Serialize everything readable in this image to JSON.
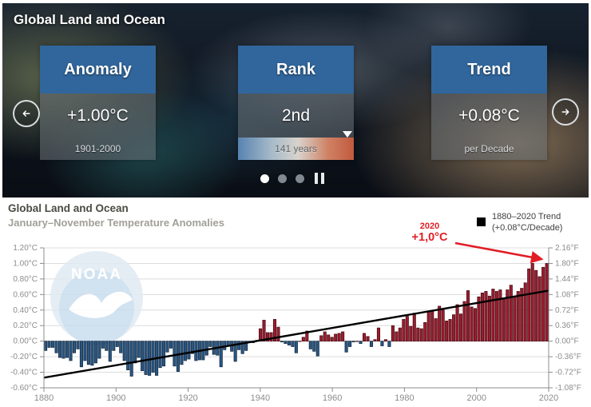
{
  "hero": {
    "title": "Global Land and Ocean",
    "cards": [
      {
        "title": "Anomaly",
        "value": "+1.00°C",
        "footer": "1901-2000"
      },
      {
        "title": "Rank",
        "value": "2nd",
        "footer": "141 years"
      },
      {
        "title": "Trend",
        "value": "+0.08°C",
        "footer": "per Decade"
      }
    ],
    "colors": {
      "card_header": "#30669c"
    }
  },
  "chart": {
    "title": "Global Land and Ocean",
    "subtitle": "January–November Temperature Anomalies",
    "legend_line1": "1880–2020 Trend",
    "legend_line2": "(+0.08°C/Decade)",
    "annotation_year": "2020",
    "annotation_value": "+1,0°C",
    "watermark": "NOAA"
  },
  "chart_data": {
    "type": "bar",
    "title": "Global Land and Ocean — January–November Temperature Anomalies",
    "x_start": 1880,
    "x_end": 2020,
    "xticks": [
      1880,
      1900,
      1920,
      1940,
      1960,
      1980,
      2000,
      2020
    ],
    "ylim_c": [
      -0.6,
      1.2
    ],
    "yticks_c": [
      "1.20°C",
      "1.00°C",
      "0.80°C",
      "0.60°C",
      "0.40°C",
      "0.20°C",
      "0.00°C",
      "-0.20°C",
      "-0.40°C",
      "-0.60°C"
    ],
    "yticks_f": [
      "2.16°F",
      "1.80°F",
      "1.44°F",
      "1.08°F",
      "0.72°F",
      "0.36°F",
      "0.00°F",
      "-0.36°F",
      "-0.72°F",
      "-1.08°F"
    ],
    "values": [
      -0.12,
      -0.08,
      -0.08,
      -0.15,
      -0.21,
      -0.22,
      -0.21,
      -0.25,
      -0.15,
      -0.1,
      -0.33,
      -0.25,
      -0.3,
      -0.31,
      -0.28,
      -0.22,
      -0.09,
      -0.12,
      -0.26,
      -0.12,
      -0.07,
      -0.15,
      -0.25,
      -0.37,
      -0.45,
      -0.28,
      -0.21,
      -0.38,
      -0.43,
      -0.44,
      -0.4,
      -0.44,
      -0.34,
      -0.32,
      -0.14,
      -0.09,
      -0.32,
      -0.39,
      -0.3,
      -0.25,
      -0.23,
      -0.16,
      -0.25,
      -0.24,
      -0.24,
      -0.18,
      -0.07,
      -0.17,
      -0.18,
      -0.33,
      -0.11,
      -0.06,
      -0.13,
      -0.26,
      -0.11,
      -0.16,
      -0.12,
      -0.01,
      -0.02,
      0.01,
      0.16,
      0.27,
      0.11,
      0.11,
      0.28,
      0.18,
      -0.01,
      -0.03,
      -0.05,
      -0.07,
      -0.15,
      0.0,
      0.05,
      0.13,
      -0.1,
      -0.13,
      -0.19,
      0.07,
      0.12,
      0.08,
      0.05,
      0.09,
      0.1,
      0.12,
      -0.14,
      -0.07,
      -0.01,
      0.0,
      -0.03,
      0.1,
      0.06,
      -0.07,
      0.02,
      0.17,
      -0.06,
      0.02,
      -0.07,
      0.2,
      0.12,
      0.17,
      0.28,
      0.32,
      0.19,
      0.36,
      0.17,
      0.16,
      0.24,
      0.38,
      0.39,
      0.29,
      0.45,
      0.4,
      0.26,
      0.28,
      0.34,
      0.47,
      0.35,
      0.51,
      0.65,
      0.44,
      0.42,
      0.57,
      0.62,
      0.64,
      0.58,
      0.67,
      0.64,
      0.66,
      0.54,
      0.66,
      0.72,
      0.58,
      0.64,
      0.68,
      0.75,
      0.93,
      1.0,
      0.91,
      0.83,
      0.95,
      1.0
    ],
    "trend_line": {
      "x": [
        1880,
        2020
      ],
      "y": [
        -0.47,
        0.65
      ],
      "rate_label": "+0.08°C/Decade"
    },
    "colors": {
      "positive": "#9a1d2e",
      "positive_stroke": "#4a0e17",
      "negative": "#2a5784",
      "negative_stroke": "#14293f",
      "trend": "#000000",
      "annotation": "#e11d25",
      "grid": "#dcdcdc",
      "axis": "#8c8c8c",
      "tick_label": "#8c8c8c",
      "watermark_circle": "#c9ddee",
      "watermark_top": "#e1eaf3"
    }
  }
}
